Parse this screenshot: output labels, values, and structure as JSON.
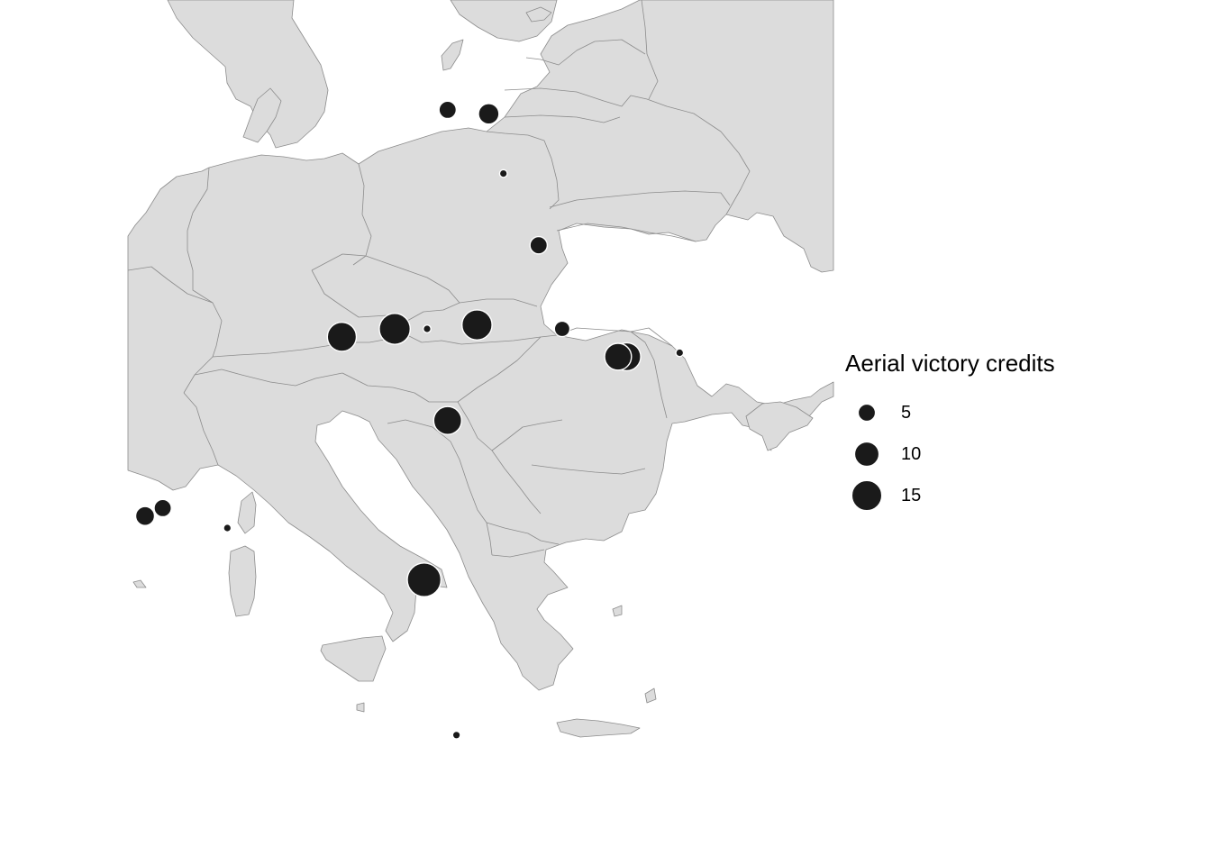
{
  "legend": {
    "title": "Aerial victory credits",
    "items": [
      {
        "label": "5",
        "value": 5
      },
      {
        "label": "10",
        "value": 10
      },
      {
        "label": "15",
        "value": 15
      }
    ]
  },
  "colors": {
    "land": "#dcdcdc",
    "border": "#8c8c8c",
    "marker": "#1a1a1a",
    "marker_outline": "#ffffff",
    "background": "#ffffff"
  },
  "map": {
    "region": "Europe",
    "projection": "equirectangular",
    "marker_size_meaning": "Aerial victory credits",
    "locations": [
      {
        "lon": 12.3,
        "lat": 53.5,
        "credits": 5
      },
      {
        "lon": 13.7,
        "lat": 53.4,
        "credits": 7
      },
      {
        "lon": 14.2,
        "lat": 51.9,
        "credits": 1
      },
      {
        "lon": 15.4,
        "lat": 50.1,
        "credits": 5
      },
      {
        "lon": 8.7,
        "lat": 47.8,
        "credits": 14
      },
      {
        "lon": 10.5,
        "lat": 48.0,
        "credits": 16
      },
      {
        "lon": 11.6,
        "lat": 48.0,
        "credits": 1
      },
      {
        "lon": 13.3,
        "lat": 48.1,
        "credits": 15
      },
      {
        "lon": 16.2,
        "lat": 48.0,
        "credits": 4
      },
      {
        "lon": 18.4,
        "lat": 47.3,
        "credits": 13
      },
      {
        "lon": 18.1,
        "lat": 47.3,
        "credits": 12
      },
      {
        "lon": 20.2,
        "lat": 47.4,
        "credits": 1
      },
      {
        "lon": 12.3,
        "lat": 45.7,
        "credits": 13
      },
      {
        "lon": 2.0,
        "lat": 43.3,
        "credits": 6
      },
      {
        "lon": 2.6,
        "lat": 43.5,
        "credits": 5
      },
      {
        "lon": 4.8,
        "lat": 43.0,
        "credits": 1
      },
      {
        "lon": 11.5,
        "lat": 41.7,
        "credits": 19
      },
      {
        "lon": 12.6,
        "lat": 37.8,
        "credits": 1
      }
    ]
  }
}
